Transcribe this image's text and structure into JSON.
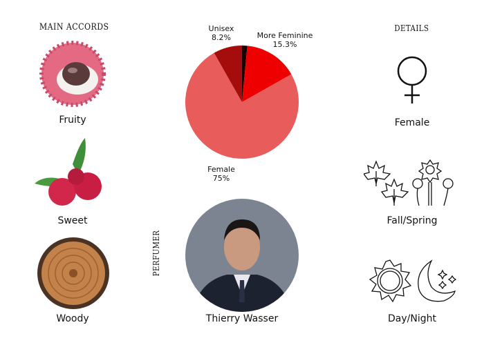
{
  "left": {
    "heading": "MAIN ACCORDS",
    "accords": [
      {
        "label": "Fruity",
        "icon": "lychee-image"
      },
      {
        "label": "Sweet",
        "icon": "raspberry-image"
      },
      {
        "label": "Woody",
        "icon": "wood-slice-image"
      }
    ]
  },
  "center": {
    "perfumer_heading": "PERFUMER",
    "perfumer_name": "Thierry Wasser"
  },
  "right": {
    "heading": "DETAILS",
    "items": [
      {
        "label": "Female",
        "icon": "female-symbol-icon"
      },
      {
        "label": "Fall/Spring",
        "icon": "leaves-and-flowers-icon"
      },
      {
        "label": "Day/Night",
        "icon": "sun-and-moon-icon"
      }
    ]
  },
  "chart_data": {
    "type": "pie",
    "slices": [
      {
        "name": "",
        "value": 1.5,
        "color": "#1a0000"
      },
      {
        "name": "More Feminine",
        "value": 15.3,
        "label": "15.3%",
        "color": "#ee0000"
      },
      {
        "name": "Female",
        "value": 75,
        "label": "75%",
        "color": "#e85c5c"
      },
      {
        "name": "Unisex",
        "value": 8.2,
        "label": "8.2%",
        "color": "#a50d0d"
      }
    ]
  }
}
